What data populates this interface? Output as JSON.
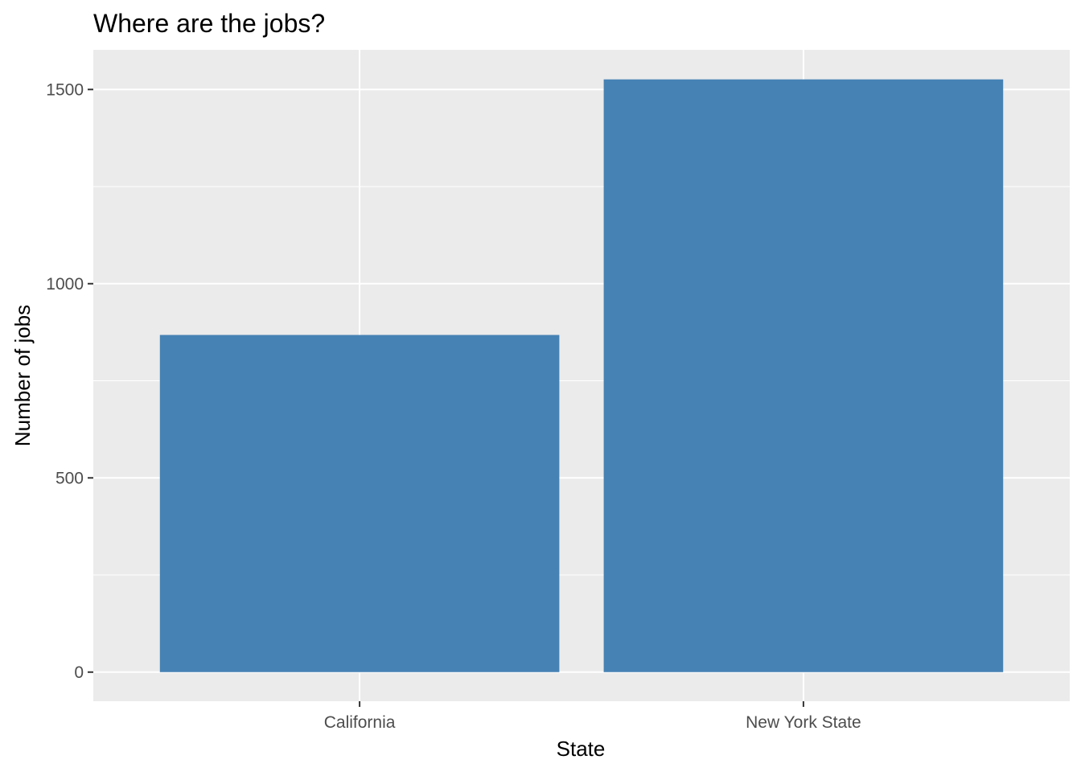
{
  "chart_data": {
    "type": "bar",
    "title": "Where are the jobs?",
    "xlabel": "State",
    "ylabel": "Number of jobs",
    "categories": [
      "California",
      "New York State"
    ],
    "values": [
      868,
      1526
    ],
    "ylim": [
      -75,
      1602
    ],
    "yticks": [
      0,
      500,
      1000,
      1500
    ],
    "ytick_labels": [
      "0",
      "500",
      "1000",
      "1500"
    ],
    "y_minor_ticks": [
      250,
      750,
      1250
    ],
    "grid": true,
    "legend": "none"
  },
  "colors": {
    "bar": "#4682b4",
    "panel_background": "#ebebeb",
    "grid_major": "#ffffff",
    "grid_minor": "#ffffff",
    "tick_text": "#4d4d4d",
    "axis_tick": "#333333"
  }
}
